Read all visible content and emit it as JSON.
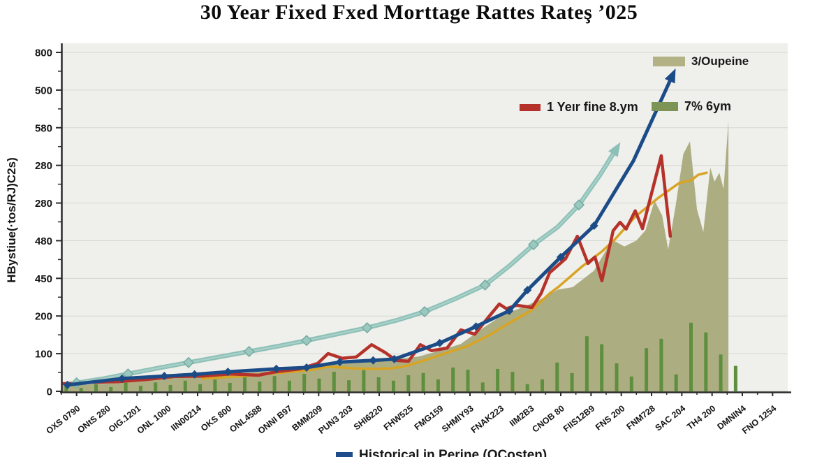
{
  "title": "30 Year Fixed Fxed Morttage Rattes Rateş ’025",
  "y_axis_title": "HBystiue(·tos/RJ)C2s)",
  "legend": {
    "area_label": "3/Oupeine",
    "red_label": "1 Yeır fine 8.ym",
    "bar_label": "7% 6ym",
    "blue_label": "Historical in Perine (OCosten)"
  },
  "chart_data": {
    "type": "composite",
    "title": "30 Year Fixed Fxed Morttage Rattes Rateş ’025",
    "ylabel": "HBystiue(·tos/RJ)C2s)",
    "ylim": [
      0,
      800
    ],
    "grid": true,
    "legend_position": "top-right, mid-right, bottom-center",
    "y_tick_labels": [
      "800",
      "500",
      "580",
      "280",
      "280",
      "480",
      "450",
      "200",
      "100",
      "0"
    ],
    "x_tick_labels": [
      "OXS 0790",
      "ONtS 280",
      "OIG.1201",
      "ONL 1000",
      "IIN00214",
      "OKS 800",
      "ONL4588",
      "ONNI B97",
      "BMM209",
      "PUN3 203",
      "SHI6220",
      "FHW525",
      "FMG159",
      "SHMIY93",
      "FNAK223",
      "IIM2B3",
      "CNOB 80",
      "FIIS12B9",
      "FNS 200",
      "FNM728",
      "SAC 204",
      "TH4 200",
      "DMNIN4",
      "FNO 1254"
    ],
    "colors": {
      "plot_bg": "#efefeb",
      "grid": "#d7d7d2",
      "axis": "#2b2b2b",
      "text": "#151515",
      "area": "#adad82",
      "bars": "#5e8f3e",
      "red": "#b5322a",
      "orange": "#d8a424",
      "teal": "#8cc0b7",
      "blue": "#1c4c87",
      "swatch_area": "#b2b285",
      "swatch_bar": "#7e9356",
      "swatch_red": "#b5322a",
      "swatch_blue": "#1f4d8c"
    },
    "area": {
      "label": "3/Oupeine",
      "color": "#adad82",
      "points": [
        [
          -0.5,
          13
        ],
        [
          1,
          18
        ],
        [
          2,
          23
        ],
        [
          3,
          30
        ],
        [
          4,
          36
        ],
        [
          5.5,
          43
        ],
        [
          6.7,
          49
        ],
        [
          7.9,
          59
        ],
        [
          9,
          69
        ],
        [
          10.2,
          73
        ],
        [
          11.3,
          82
        ],
        [
          12,
          96
        ],
        [
          12.7,
          112
        ],
        [
          13.4,
          148
        ],
        [
          14.1,
          181
        ],
        [
          14.8,
          200
        ],
        [
          15.5,
          223
        ],
        [
          15.9,
          240
        ],
        [
          16.4,
          246
        ],
        [
          17.1,
          285
        ],
        [
          17.7,
          358
        ],
        [
          18.1,
          342
        ],
        [
          18.5,
          356
        ],
        [
          18.8,
          380
        ],
        [
          19.1,
          450
        ],
        [
          19.35,
          415
        ],
        [
          19.55,
          335
        ],
        [
          19.8,
          440
        ],
        [
          20.05,
          560
        ],
        [
          20.27,
          590
        ],
        [
          20.5,
          430
        ],
        [
          20.71,
          376
        ],
        [
          20.94,
          528
        ],
        [
          21.08,
          495
        ],
        [
          21.24,
          516
        ],
        [
          21.38,
          478
        ],
        [
          21.54,
          638
        ]
      ]
    },
    "bars": {
      "label": "7% 6ym",
      "color": "#5e8f3e",
      "start_cat": -0.34,
      "step_cat": 0.4915,
      "values": [
        13,
        8,
        17,
        10,
        20,
        13,
        21,
        15,
        25,
        17,
        28,
        20,
        33,
        23,
        36,
        25,
        41,
        30,
        46,
        26,
        50,
        33,
        25,
        38,
        43,
        28,
        56,
        51,
        21,
        53,
        46,
        17,
        28,
        68,
        43,
        130,
        111,
        66,
        35,
        102,
        124,
        40,
        162,
        139,
        87,
        60
      ]
    },
    "lines": [
      {
        "name": "trend-line-orange",
        "label": "",
        "color": "#d8a424",
        "width": 3.5,
        "points": [
          [
            4.16,
            30
          ],
          [
            5.55,
            36
          ],
          [
            6.58,
            43
          ],
          [
            7.62,
            49
          ],
          [
            8.31,
            58
          ],
          [
            9.24,
            54
          ],
          [
            9.93,
            53
          ],
          [
            10.39,
            54
          ],
          [
            10.85,
            59
          ],
          [
            11.54,
            74
          ],
          [
            12.24,
            91
          ],
          [
            12.93,
            107
          ],
          [
            13.62,
            132
          ],
          [
            14.31,
            162
          ],
          [
            15.01,
            190
          ],
          [
            15.63,
            231
          ],
          [
            15.93,
            247
          ],
          [
            16.69,
            294
          ],
          [
            17.36,
            330
          ],
          [
            17.78,
            358
          ],
          [
            18.46,
            412
          ],
          [
            19.23,
            457
          ],
          [
            19.92,
            492
          ],
          [
            20.31,
            498
          ],
          [
            20.54,
            511
          ],
          [
            20.82,
            516
          ]
        ]
      },
      {
        "name": "rate-line-red",
        "label": "1 Yeır fine 8.ym",
        "color": "#b5322a",
        "width": 4.5,
        "points": [
          [
            -0.45,
            18
          ],
          [
            0.47,
            21
          ],
          [
            1.39,
            23
          ],
          [
            2.32,
            28
          ],
          [
            3.24,
            35
          ],
          [
            4.16,
            36
          ],
          [
            5.08,
            41
          ],
          [
            6.01,
            38
          ],
          [
            6.58,
            46
          ],
          [
            7.39,
            53
          ],
          [
            7.97,
            66
          ],
          [
            8.31,
            89
          ],
          [
            8.78,
            78
          ],
          [
            9.24,
            81
          ],
          [
            9.75,
            110
          ],
          [
            10.21,
            91
          ],
          [
            10.55,
            73
          ],
          [
            10.97,
            71
          ],
          [
            11.36,
            110
          ],
          [
            11.73,
            96
          ],
          [
            12.24,
            102
          ],
          [
            12.7,
            145
          ],
          [
            13.16,
            135
          ],
          [
            13.62,
            176
          ],
          [
            13.97,
            206
          ],
          [
            14.2,
            195
          ],
          [
            14.54,
            203
          ],
          [
            15.05,
            198
          ],
          [
            15.35,
            231
          ],
          [
            15.63,
            280
          ],
          [
            16.16,
            313
          ],
          [
            16.55,
            366
          ],
          [
            16.9,
            302
          ],
          [
            17.13,
            317
          ],
          [
            17.36,
            261
          ],
          [
            17.73,
            379
          ],
          [
            17.96,
            399
          ],
          [
            18.16,
            383
          ],
          [
            18.46,
            426
          ],
          [
            18.7,
            384
          ],
          [
            19.32,
            556
          ],
          [
            19.62,
            366
          ]
        ]
      },
      {
        "name": "projection-line-teal",
        "label": "",
        "color": "#8cc0b7",
        "color2": "#a8d0c8",
        "width": 6.5,
        "marker": "diamond",
        "marker_every": 2,
        "marker_last": 18,
        "msize": 7,
        "mcolor": "#9bc8bf",
        "mstroke": "#74aca3",
        "arrow": true,
        "points": [
          [
            0,
            20
          ],
          [
            0.9,
            30
          ],
          [
            1.7,
            41
          ],
          [
            2.7,
            55
          ],
          [
            3.7,
            68
          ],
          [
            4.7,
            81
          ],
          [
            5.7,
            94
          ],
          [
            6.7,
            107
          ],
          [
            7.6,
            120
          ],
          [
            8.6,
            135
          ],
          [
            9.6,
            150
          ],
          [
            10.6,
            168
          ],
          [
            11.5,
            188
          ],
          [
            12.5,
            218
          ],
          [
            13.5,
            251
          ],
          [
            14.3,
            296
          ],
          [
            15.1,
            346
          ],
          [
            15.9,
            388
          ],
          [
            16.6,
            440
          ],
          [
            17.3,
            511
          ],
          [
            17.85,
            574
          ]
        ]
      },
      {
        "name": "historical-line-blue",
        "label": "Historical in Perine (OCosten)",
        "color": "#1c4c87",
        "width": 5,
        "marker": "diamond",
        "marker_every": 1,
        "marker_last": 15,
        "msize": 6,
        "arrow": true,
        "points": [
          [
            -0.3,
            15
          ],
          [
            1.5,
            30
          ],
          [
            2.9,
            36
          ],
          [
            3.9,
            40
          ],
          [
            5.0,
            46
          ],
          [
            6.6,
            53
          ],
          [
            7.6,
            56
          ],
          [
            8.7,
            69
          ],
          [
            9.8,
            73
          ],
          [
            10.5,
            76
          ],
          [
            12.0,
            114
          ],
          [
            13.2,
            153
          ],
          [
            14.3,
            190
          ],
          [
            14.9,
            239
          ],
          [
            16.0,
            317
          ],
          [
            17.1,
            391
          ],
          [
            18.4,
            544
          ],
          [
            19.7,
            747
          ]
        ]
      }
    ]
  }
}
